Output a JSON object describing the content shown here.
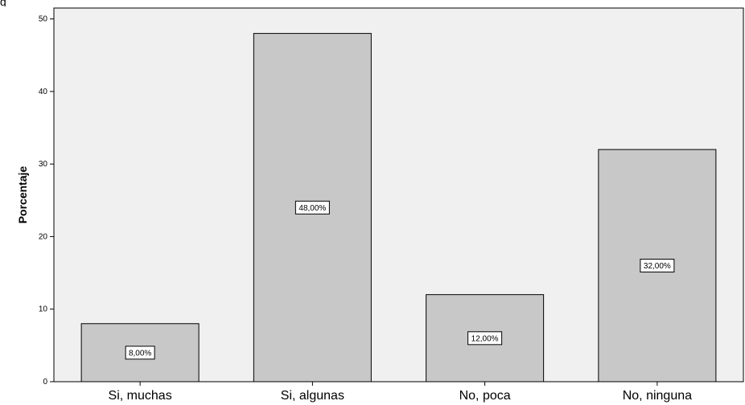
{
  "chart_data": {
    "type": "bar",
    "title": "",
    "xlabel": "",
    "ylabel": "Porcentaje",
    "ylim": [
      0,
      51.5
    ],
    "yticks": [
      0,
      10,
      20,
      30,
      40,
      50
    ],
    "categories": [
      "Si, muchas",
      "Si, algunas",
      "No, poca",
      "No, ninguna"
    ],
    "values": [
      8,
      48,
      12,
      32
    ],
    "data_labels": [
      "8,00%",
      "48,00%",
      "12,00%",
      "32,00%"
    ],
    "grid": false,
    "legend": "none",
    "colors": {
      "plot_background": "#f0f0f0",
      "bar_fill": "#c8c8c8",
      "bar_stroke": "#000000",
      "label_box_fill": "#ffffff"
    }
  }
}
